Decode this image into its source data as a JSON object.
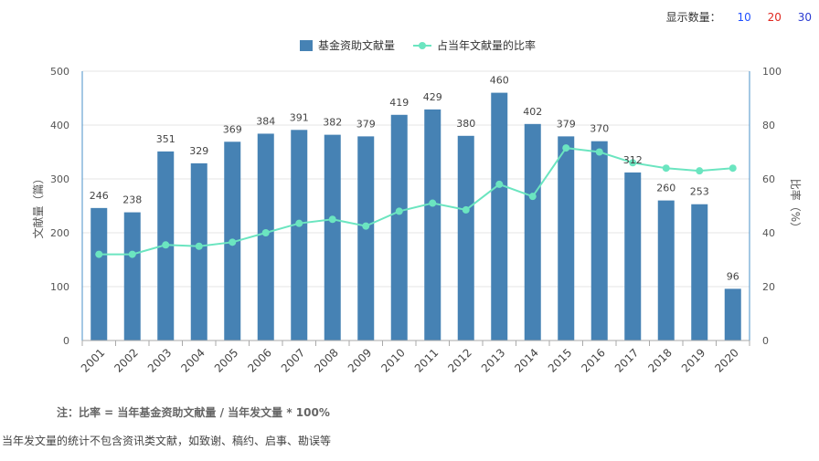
{
  "display_count": {
    "label": "显示数量：",
    "options": [
      "10",
      "20",
      "30"
    ],
    "colors": [
      "#1f4fff",
      "#e0271f",
      "#2a3ad1"
    ]
  },
  "colors": {
    "bar": "#4682b4",
    "line": "#6be5c0",
    "axis": "#4a90c8",
    "grid": "#e6e6e6"
  },
  "chart_data": {
    "type": "bar",
    "categories": [
      "2001",
      "2002",
      "2003",
      "2004",
      "2005",
      "2006",
      "2007",
      "2008",
      "2009",
      "2010",
      "2011",
      "2012",
      "2013",
      "2014",
      "2015",
      "2016",
      "2017",
      "2018",
      "2019",
      "2020"
    ],
    "series": [
      {
        "name": "基金资助文献量",
        "type": "bar",
        "axis": "left",
        "values": [
          246,
          238,
          351,
          329,
          369,
          384,
          391,
          382,
          379,
          419,
          429,
          380,
          460,
          402,
          379,
          370,
          312,
          260,
          253,
          96
        ]
      },
      {
        "name": "占当年文献量的比率",
        "type": "line",
        "axis": "right",
        "values": [
          32,
          32,
          35.5,
          35,
          36.5,
          40,
          43.5,
          45,
          42.5,
          48,
          51,
          48.5,
          58,
          53.5,
          71.5,
          70,
          66,
          64,
          63,
          64
        ]
      }
    ],
    "ylabel_left": "文献量（篇）",
    "ylabel_right": "比率（%）",
    "ylim_left": [
      0,
      500
    ],
    "ylim_right": [
      0,
      100
    ],
    "yticks_left": [
      "0",
      "100",
      "200",
      "300",
      "400",
      "500"
    ],
    "yticks_right": [
      "0",
      "20",
      "40",
      "60",
      "80",
      "100"
    ],
    "legend_position": "top-center",
    "grid": true
  },
  "notes": {
    "formula": "注：比率 = 当年基金资助文献量 / 当年发文量 * 100%",
    "exclusion": "当年发文量的统计不包含资讯类文献，如致谢、稿约、启事、勘误等"
  }
}
